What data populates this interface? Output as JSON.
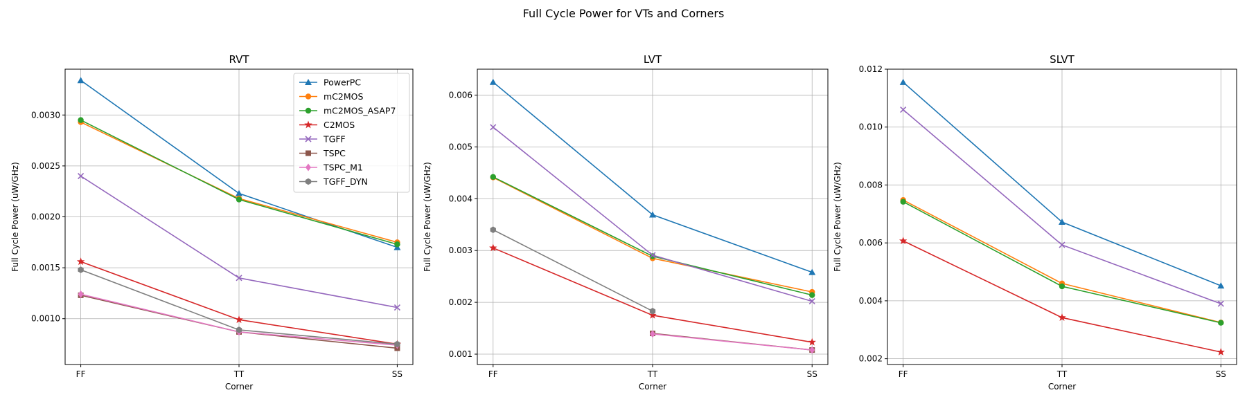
{
  "figure": {
    "suptitle": "Full Cycle Power for VTs and Corners"
  },
  "chart_data": [
    {
      "type": "line",
      "title": "RVT",
      "xlabel": "Corner",
      "ylabel": "Full Cycle Power (uW/GHz)",
      "categories": [
        "FF",
        "TT",
        "SS"
      ],
      "ylim": [
        0.00055,
        0.00345
      ],
      "yticks": [
        "0.0010",
        "0.0015",
        "0.0020",
        "0.0025",
        "0.0030"
      ],
      "ytick_values": [
        0.001,
        0.0015,
        0.002,
        0.0025,
        0.003
      ],
      "grid": true,
      "legend": "top-right",
      "series": [
        {
          "name": "PowerPC",
          "values": [
            0.00334,
            0.00223,
            0.0017
          ],
          "color": "#1f77b4",
          "marker": "triangle"
        },
        {
          "name": "mC2MOS",
          "values": [
            0.00293,
            0.00218,
            0.00175
          ],
          "color": "#ff7f0e",
          "marker": "circle"
        },
        {
          "name": "mC2MOS_ASAP7",
          "values": [
            0.00295,
            0.00217,
            0.00173
          ],
          "color": "#2ca02c",
          "marker": "circle"
        },
        {
          "name": "C2MOS",
          "values": [
            0.00156,
            0.00099,
            0.00075
          ],
          "color": "#d62728",
          "marker": "star"
        },
        {
          "name": "TGFF",
          "values": [
            0.0024,
            0.0014,
            0.00111
          ],
          "color": "#9467bd",
          "marker": "x"
        },
        {
          "name": "TSPC",
          "values": [
            0.00123,
            0.00087,
            0.00071
          ],
          "color": "#8c564b",
          "marker": "square"
        },
        {
          "name": "TSPC_M1",
          "values": [
            0.00124,
            0.00087,
            0.00074
          ],
          "color": "#e377c2",
          "marker": "diamond"
        },
        {
          "name": "TGFF_DYN",
          "values": [
            0.00148,
            0.00089,
            0.00075
          ],
          "color": "#7f7f7f",
          "marker": "hexagon"
        }
      ]
    },
    {
      "type": "line",
      "title": "LVT",
      "xlabel": "Corner",
      "ylabel": "Full Cycle Power (uW/GHz)",
      "categories": [
        "FF",
        "TT",
        "SS"
      ],
      "ylim": [
        0.0008,
        0.0065
      ],
      "yticks": [
        "0.001",
        "0.002",
        "0.003",
        "0.004",
        "0.005",
        "0.006"
      ],
      "ytick_values": [
        0.001,
        0.002,
        0.003,
        0.004,
        0.005,
        0.006
      ],
      "grid": true,
      "series": [
        {
          "name": "PowerPC",
          "values": [
            0.00625,
            0.00369,
            0.00258
          ],
          "color": "#1f77b4",
          "marker": "triangle"
        },
        {
          "name": "mC2MOS",
          "values": [
            0.00441,
            0.00285,
            0.0022
          ],
          "color": "#ff7f0e",
          "marker": "circle"
        },
        {
          "name": "mC2MOS_ASAP7",
          "values": [
            0.00442,
            0.00289,
            0.00214
          ],
          "color": "#2ca02c",
          "marker": "circle"
        },
        {
          "name": "C2MOS",
          "values": [
            0.00305,
            0.00175,
            0.00123
          ],
          "color": "#d62728",
          "marker": "star"
        },
        {
          "name": "TGFF",
          "values": [
            0.00538,
            0.00291,
            0.00202
          ],
          "color": "#9467bd",
          "marker": "x"
        },
        {
          "name": "TSPC",
          "values": [
            null,
            0.0014,
            0.00108
          ],
          "color": "#8c564b",
          "marker": "square"
        },
        {
          "name": "TSPC_M1",
          "values": [
            null,
            0.00139,
            0.00108
          ],
          "color": "#e377c2",
          "marker": "diamond"
        },
        {
          "name": "TGFF_DYN",
          "values": [
            0.0034,
            0.00183,
            null
          ],
          "color": "#7f7f7f",
          "marker": "hexagon"
        }
      ]
    },
    {
      "type": "line",
      "title": "SLVT",
      "xlabel": "Corner",
      "ylabel": "Full Cycle Power (uW/GHz)",
      "categories": [
        "FF",
        "TT",
        "SS"
      ],
      "ylim": [
        0.0018,
        0.012
      ],
      "yticks": [
        "0.002",
        "0.004",
        "0.006",
        "0.008",
        "0.010",
        "0.012"
      ],
      "ytick_values": [
        0.002,
        0.004,
        0.006,
        0.008,
        0.01,
        0.012
      ],
      "grid": true,
      "series": [
        {
          "name": "PowerPC",
          "values": [
            0.01155,
            0.00672,
            0.00452
          ],
          "color": "#1f77b4",
          "marker": "triangle"
        },
        {
          "name": "mC2MOS",
          "values": [
            0.00748,
            0.0046,
            0.00325
          ],
          "color": "#ff7f0e",
          "marker": "circle"
        },
        {
          "name": "mC2MOS_ASAP7",
          "values": [
            0.00742,
            0.0045,
            0.00324
          ],
          "color": "#2ca02c",
          "marker": "circle"
        },
        {
          "name": "C2MOS",
          "values": [
            0.00607,
            0.00342,
            0.00223
          ],
          "color": "#d62728",
          "marker": "star"
        },
        {
          "name": "TGFF",
          "values": [
            0.0106,
            0.00593,
            0.0039
          ],
          "color": "#9467bd",
          "marker": "x"
        }
      ]
    }
  ]
}
